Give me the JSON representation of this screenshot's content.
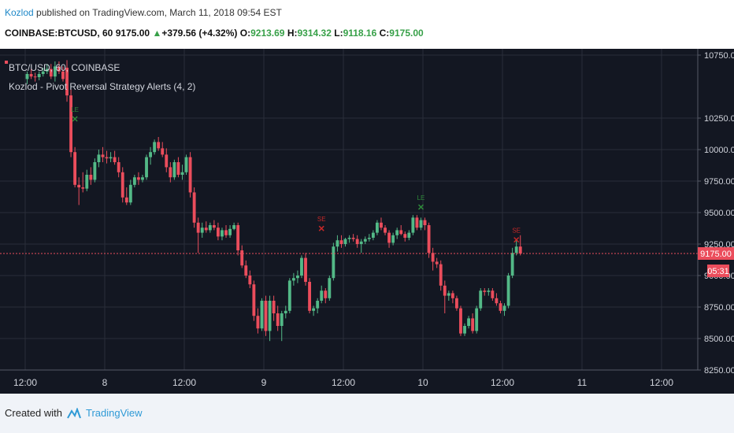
{
  "header": {
    "author": "Kozlod",
    "published_text": "published on TradingView.com, March 11, 2018 09:54 EST",
    "symbol": "COINBASE:BTCUSD, 60",
    "last": "9175.00",
    "change": "+379.56 (+4.32%)",
    "o_label": "O:",
    "o_value": "9213.69",
    "h_label": "H:",
    "h_value": "9314.32",
    "l_label": "L:",
    "l_value": "9118.16",
    "c_label": "C:",
    "c_value": "9175.00"
  },
  "legend": {
    "series": "BTC/USD, 60, COINBASE",
    "indicator": "Kozlod - Pivot Reversal Strategy Alerts (4, 2)"
  },
  "price_badge": "9175.00",
  "timer_badge": "05:31",
  "footer": {
    "created_with": "Created with",
    "brand": "TradingView"
  },
  "colors": {
    "background": "#131722",
    "grid": "#2a2e39",
    "up": "#53b987",
    "down": "#eb4d5c",
    "price_line": "#eb4d5c",
    "axis_text": "#d1d4dc",
    "le_marker": "#2e8b3a",
    "se_marker": "#c62828"
  },
  "chart_data": {
    "type": "candlestick",
    "symbol": "BTC/USD",
    "interval": "60",
    "ylim": [
      8250,
      10800
    ],
    "y_ticks": [
      8250,
      8500,
      8750,
      9000,
      9250,
      9500,
      9750,
      10000,
      10250,
      10750
    ],
    "y_tick_labels": [
      "8250.00",
      "8500.00",
      "8750.00",
      "9000.00",
      "9250.00",
      "9500.00",
      "9750.00",
      "10000.00",
      "10250.00",
      "10750.00"
    ],
    "x_tick_labels": [
      "12:00",
      "8",
      "12:00",
      "9",
      "12:00",
      "10",
      "12:00",
      "11",
      "12:00"
    ],
    "x_tick_bars": [
      0,
      20,
      40,
      60,
      80,
      100,
      120,
      140,
      160
    ],
    "last_price": 9175.0,
    "candles": [
      {
        "o": 10560,
        "h": 10620,
        "l": 10520,
        "c": 10600
      },
      {
        "o": 10600,
        "h": 10640,
        "l": 10560,
        "c": 10580
      },
      {
        "o": 10580,
        "h": 10610,
        "l": 10540,
        "c": 10575
      },
      {
        "o": 10575,
        "h": 10620,
        "l": 10550,
        "c": 10600
      },
      {
        "o": 10600,
        "h": 10650,
        "l": 10580,
        "c": 10620
      },
      {
        "o": 10620,
        "h": 10680,
        "l": 10600,
        "c": 10640
      },
      {
        "o": 10640,
        "h": 10680,
        "l": 10560,
        "c": 10580
      },
      {
        "o": 10580,
        "h": 10700,
        "l": 10540,
        "c": 10660
      },
      {
        "o": 10660,
        "h": 10700,
        "l": 10600,
        "c": 10620
      },
      {
        "o": 10620,
        "h": 10660,
        "l": 10540,
        "c": 10560
      },
      {
        "o": 10650,
        "h": 10710,
        "l": 10380,
        "c": 10430
      },
      {
        "o": 10430,
        "h": 10480,
        "l": 9940,
        "c": 9980
      },
      {
        "o": 9980,
        "h": 10020,
        "l": 9700,
        "c": 9720
      },
      {
        "o": 9720,
        "h": 9780,
        "l": 9560,
        "c": 9700
      },
      {
        "o": 9700,
        "h": 9820,
        "l": 9660,
        "c": 9690
      },
      {
        "o": 9690,
        "h": 9840,
        "l": 9670,
        "c": 9800
      },
      {
        "o": 9800,
        "h": 9860,
        "l": 9720,
        "c": 9760
      },
      {
        "o": 9760,
        "h": 9930,
        "l": 9740,
        "c": 9900
      },
      {
        "o": 9900,
        "h": 10000,
        "l": 9860,
        "c": 9960
      },
      {
        "o": 9960,
        "h": 10020,
        "l": 9900,
        "c": 9940
      },
      {
        "o": 9940,
        "h": 9990,
        "l": 9890,
        "c": 9930
      },
      {
        "o": 9930,
        "h": 9980,
        "l": 9900,
        "c": 9940
      },
      {
        "o": 9940,
        "h": 9990,
        "l": 9880,
        "c": 9900
      },
      {
        "o": 9900,
        "h": 9940,
        "l": 9780,
        "c": 9820
      },
      {
        "o": 9820,
        "h": 9860,
        "l": 9580,
        "c": 9620
      },
      {
        "o": 9620,
        "h": 9700,
        "l": 9560,
        "c": 9580
      },
      {
        "o": 9580,
        "h": 9760,
        "l": 9560,
        "c": 9720
      },
      {
        "o": 9720,
        "h": 9800,
        "l": 9700,
        "c": 9780
      },
      {
        "o": 9780,
        "h": 9820,
        "l": 9720,
        "c": 9760
      },
      {
        "o": 9760,
        "h": 9800,
        "l": 9740,
        "c": 9780
      },
      {
        "o": 9780,
        "h": 9960,
        "l": 9760,
        "c": 9940
      },
      {
        "o": 9940,
        "h": 10020,
        "l": 9880,
        "c": 9980
      },
      {
        "o": 9980,
        "h": 10080,
        "l": 9960,
        "c": 10060
      },
      {
        "o": 10060,
        "h": 10100,
        "l": 9990,
        "c": 10010
      },
      {
        "o": 10010,
        "h": 10060,
        "l": 9940,
        "c": 9960
      },
      {
        "o": 9960,
        "h": 10010,
        "l": 9820,
        "c": 9860
      },
      {
        "o": 9860,
        "h": 9900,
        "l": 9740,
        "c": 9780
      },
      {
        "o": 9780,
        "h": 9920,
        "l": 9760,
        "c": 9900
      },
      {
        "o": 9900,
        "h": 9940,
        "l": 9780,
        "c": 9800
      },
      {
        "o": 9800,
        "h": 9880,
        "l": 9760,
        "c": 9820
      },
      {
        "o": 9820,
        "h": 9960,
        "l": 9800,
        "c": 9940
      },
      {
        "o": 9940,
        "h": 9980,
        "l": 9620,
        "c": 9660
      },
      {
        "o": 9660,
        "h": 9700,
        "l": 9380,
        "c": 9420
      },
      {
        "o": 9420,
        "h": 9460,
        "l": 9180,
        "c": 9340
      },
      {
        "o": 9340,
        "h": 9420,
        "l": 9300,
        "c": 9380
      },
      {
        "o": 9380,
        "h": 9430,
        "l": 9340,
        "c": 9360
      },
      {
        "o": 9360,
        "h": 9420,
        "l": 9340,
        "c": 9400
      },
      {
        "o": 9400,
        "h": 9440,
        "l": 9360,
        "c": 9380
      },
      {
        "o": 9380,
        "h": 9420,
        "l": 9280,
        "c": 9310
      },
      {
        "o": 9310,
        "h": 9380,
        "l": 9280,
        "c": 9360
      },
      {
        "o": 9360,
        "h": 9400,
        "l": 9300,
        "c": 9320
      },
      {
        "o": 9320,
        "h": 9400,
        "l": 9300,
        "c": 9370
      },
      {
        "o": 9370,
        "h": 9420,
        "l": 9360,
        "c": 9400
      },
      {
        "o": 9400,
        "h": 9420,
        "l": 9160,
        "c": 9200
      },
      {
        "o": 9200,
        "h": 9240,
        "l": 9060,
        "c": 9080
      },
      {
        "o": 9080,
        "h": 9120,
        "l": 8980,
        "c": 9000
      },
      {
        "o": 9000,
        "h": 9040,
        "l": 8900,
        "c": 8930
      },
      {
        "o": 8930,
        "h": 8960,
        "l": 8640,
        "c": 8680
      },
      {
        "o": 8680,
        "h": 8740,
        "l": 8540,
        "c": 8580
      },
      {
        "o": 8580,
        "h": 8820,
        "l": 8560,
        "c": 8800
      },
      {
        "o": 8800,
        "h": 8840,
        "l": 8520,
        "c": 8560
      },
      {
        "o": 8560,
        "h": 8840,
        "l": 8480,
        "c": 8800
      },
      {
        "o": 8800,
        "h": 8840,
        "l": 8640,
        "c": 8700
      },
      {
        "o": 8700,
        "h": 8760,
        "l": 8560,
        "c": 8600
      },
      {
        "o": 8600,
        "h": 8720,
        "l": 8480,
        "c": 8700
      },
      {
        "o": 8700,
        "h": 8760,
        "l": 8660,
        "c": 8720
      },
      {
        "o": 8720,
        "h": 8980,
        "l": 8700,
        "c": 8960
      },
      {
        "o": 8960,
        "h": 9020,
        "l": 8920,
        "c": 8980
      },
      {
        "o": 8980,
        "h": 9040,
        "l": 8940,
        "c": 9000
      },
      {
        "o": 9000,
        "h": 9160,
        "l": 8980,
        "c": 9140
      },
      {
        "o": 9140,
        "h": 9180,
        "l": 8920,
        "c": 8950
      },
      {
        "o": 8950,
        "h": 8980,
        "l": 8700,
        "c": 8720
      },
      {
        "o": 8720,
        "h": 8760,
        "l": 8680,
        "c": 8740
      },
      {
        "o": 8740,
        "h": 8820,
        "l": 8700,
        "c": 8800
      },
      {
        "o": 8800,
        "h": 8920,
        "l": 8780,
        "c": 8880
      },
      {
        "o": 8880,
        "h": 8900,
        "l": 8780,
        "c": 8820
      },
      {
        "o": 8820,
        "h": 9000,
        "l": 8800,
        "c": 8980
      },
      {
        "o": 8980,
        "h": 9260,
        "l": 8960,
        "c": 9230
      },
      {
        "o": 9230,
        "h": 9320,
        "l": 9190,
        "c": 9280
      },
      {
        "o": 9280,
        "h": 9320,
        "l": 9220,
        "c": 9250
      },
      {
        "o": 9250,
        "h": 9300,
        "l": 9230,
        "c": 9290
      },
      {
        "o": 9290,
        "h": 9320,
        "l": 9260,
        "c": 9300
      },
      {
        "o": 9300,
        "h": 9330,
        "l": 9270,
        "c": 9290
      },
      {
        "o": 9290,
        "h": 9320,
        "l": 9220,
        "c": 9250
      },
      {
        "o": 9250,
        "h": 9290,
        "l": 9180,
        "c": 9270
      },
      {
        "o": 9270,
        "h": 9310,
        "l": 9250,
        "c": 9290
      },
      {
        "o": 9290,
        "h": 9330,
        "l": 9270,
        "c": 9300
      },
      {
        "o": 9300,
        "h": 9360,
        "l": 9280,
        "c": 9340
      },
      {
        "o": 9340,
        "h": 9440,
        "l": 9320,
        "c": 9420
      },
      {
        "o": 9420,
        "h": 9460,
        "l": 9360,
        "c": 9380
      },
      {
        "o": 9380,
        "h": 9400,
        "l": 9320,
        "c": 9340
      },
      {
        "o": 9340,
        "h": 9360,
        "l": 9220,
        "c": 9260
      },
      {
        "o": 9260,
        "h": 9340,
        "l": 9240,
        "c": 9320
      },
      {
        "o": 9320,
        "h": 9380,
        "l": 9290,
        "c": 9360
      },
      {
        "o": 9360,
        "h": 9400,
        "l": 9320,
        "c": 9330
      },
      {
        "o": 9330,
        "h": 9350,
        "l": 9270,
        "c": 9300
      },
      {
        "o": 9300,
        "h": 9360,
        "l": 9280,
        "c": 9340
      },
      {
        "o": 9340,
        "h": 9480,
        "l": 9320,
        "c": 9460
      },
      {
        "o": 9460,
        "h": 9480,
        "l": 9360,
        "c": 9380
      },
      {
        "o": 9380,
        "h": 9460,
        "l": 9360,
        "c": 9440
      },
      {
        "o": 9440,
        "h": 9460,
        "l": 9360,
        "c": 9400
      },
      {
        "o": 9400,
        "h": 9420,
        "l": 9140,
        "c": 9180
      },
      {
        "o": 9180,
        "h": 9220,
        "l": 9040,
        "c": 9110
      },
      {
        "o": 9110,
        "h": 9140,
        "l": 9060,
        "c": 9090
      },
      {
        "o": 9090,
        "h": 9120,
        "l": 8880,
        "c": 8920
      },
      {
        "o": 8920,
        "h": 8960,
        "l": 8700,
        "c": 8840
      },
      {
        "o": 8840,
        "h": 8880,
        "l": 8800,
        "c": 8860
      },
      {
        "o": 8860,
        "h": 8880,
        "l": 8780,
        "c": 8820
      },
      {
        "o": 8820,
        "h": 8840,
        "l": 8720,
        "c": 8740
      },
      {
        "o": 8740,
        "h": 8760,
        "l": 8520,
        "c": 8540
      },
      {
        "o": 8540,
        "h": 8620,
        "l": 8520,
        "c": 8600
      },
      {
        "o": 8600,
        "h": 8680,
        "l": 8580,
        "c": 8660
      },
      {
        "o": 8660,
        "h": 8700,
        "l": 8540,
        "c": 8560
      },
      {
        "o": 8560,
        "h": 8760,
        "l": 8540,
        "c": 8740
      },
      {
        "o": 8740,
        "h": 8900,
        "l": 8720,
        "c": 8880
      },
      {
        "o": 8880,
        "h": 8900,
        "l": 8840,
        "c": 8870
      },
      {
        "o": 8870,
        "h": 8900,
        "l": 8840,
        "c": 8880
      },
      {
        "o": 8880,
        "h": 8900,
        "l": 8800,
        "c": 8820
      },
      {
        "o": 8820,
        "h": 8860,
        "l": 8760,
        "c": 8780
      },
      {
        "o": 8780,
        "h": 8800,
        "l": 8700,
        "c": 8720
      },
      {
        "o": 8720,
        "h": 8780,
        "l": 8680,
        "c": 8760
      },
      {
        "o": 8760,
        "h": 9020,
        "l": 8740,
        "c": 9000
      },
      {
        "o": 9000,
        "h": 9220,
        "l": 8980,
        "c": 9180
      },
      {
        "o": 9180,
        "h": 9280,
        "l": 9160,
        "c": 9230
      },
      {
        "o": 9230,
        "h": 9320,
        "l": 9160,
        "c": 9175
      }
    ],
    "markers": [
      {
        "bar": 12,
        "type": "LE",
        "price": 10300
      },
      {
        "bar": 74,
        "type": "SE",
        "price": 9430
      },
      {
        "bar": 99,
        "type": "LE",
        "price": 9600
      },
      {
        "bar": 123,
        "type": "SE",
        "price": 9340
      }
    ]
  }
}
